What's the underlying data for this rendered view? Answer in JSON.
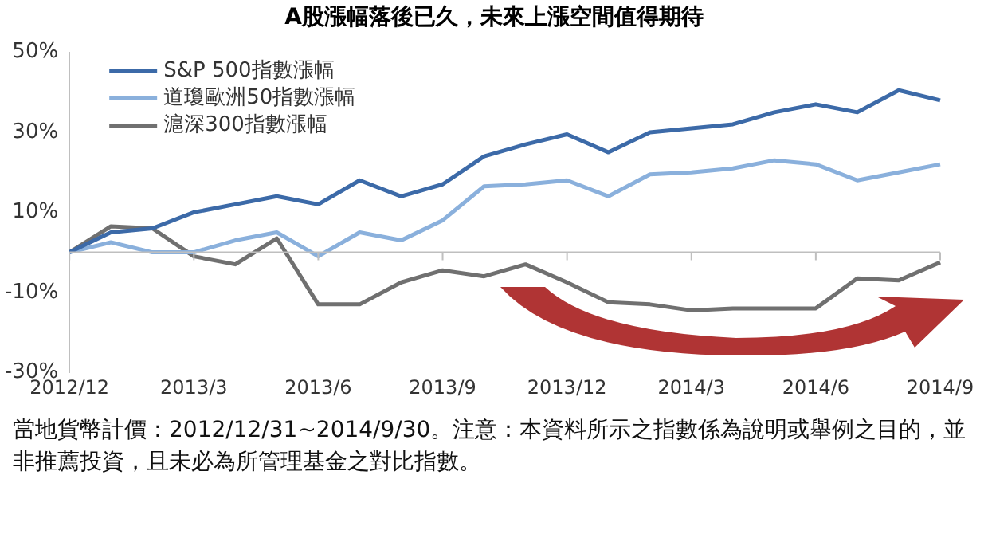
{
  "chart_data": {
    "type": "line",
    "title": "A股漲幅落後已久，未來上漲空間值得期待",
    "categories": [
      "2012/12",
      null,
      null,
      "2013/3",
      null,
      null,
      "2013/6",
      null,
      null,
      "2013/9",
      null,
      null,
      "2013/12",
      null,
      null,
      "2014/3",
      null,
      null,
      "2014/6",
      null,
      null,
      "2014/9"
    ],
    "series": [
      {
        "name": "S&P 500指數漲幅",
        "color": "#3c6aa8",
        "values": [
          0,
          5,
          6,
          10,
          12,
          14,
          12,
          18,
          14,
          17,
          24,
          27,
          29.5,
          25,
          30,
          31,
          32,
          35,
          37,
          35,
          40.5,
          38
        ]
      },
      {
        "name": "道瓊歐洲50指數漲幅",
        "color": "#8ab0dc",
        "values": [
          0,
          2.5,
          0,
          0,
          3,
          5,
          -1,
          5,
          3,
          8,
          16.5,
          17,
          18,
          14,
          19.5,
          20,
          21,
          23,
          22,
          18,
          20,
          22
        ]
      },
      {
        "name": "滬深300指數漲幅",
        "color": "#707070",
        "values": [
          0,
          6.5,
          6,
          -1,
          -3,
          3.5,
          -13,
          -13,
          -7.5,
          -4.5,
          -6,
          -3,
          -7.5,
          -12.5,
          -13,
          -14.5,
          -14,
          -14,
          -14,
          -6.5,
          -7,
          -2.5
        ]
      }
    ],
    "ylim": [
      -30,
      50
    ],
    "yticks": [
      {
        "value": -30,
        "label": "-30%"
      },
      {
        "value": -10,
        "label": "-10%"
      },
      {
        "value": 10,
        "label": "10%"
      },
      {
        "value": 30,
        "label": "30%"
      },
      {
        "value": 50,
        "label": "50%"
      }
    ],
    "legend": "top left",
    "marker": "none",
    "annotations": [
      "當地貨幣計價：2012/12/31~2014/9/30。注意：本資料所示之指數係為說明或舉例之目的，並非推薦投資，且未必為所管理基金之對比指數。"
    ]
  }
}
